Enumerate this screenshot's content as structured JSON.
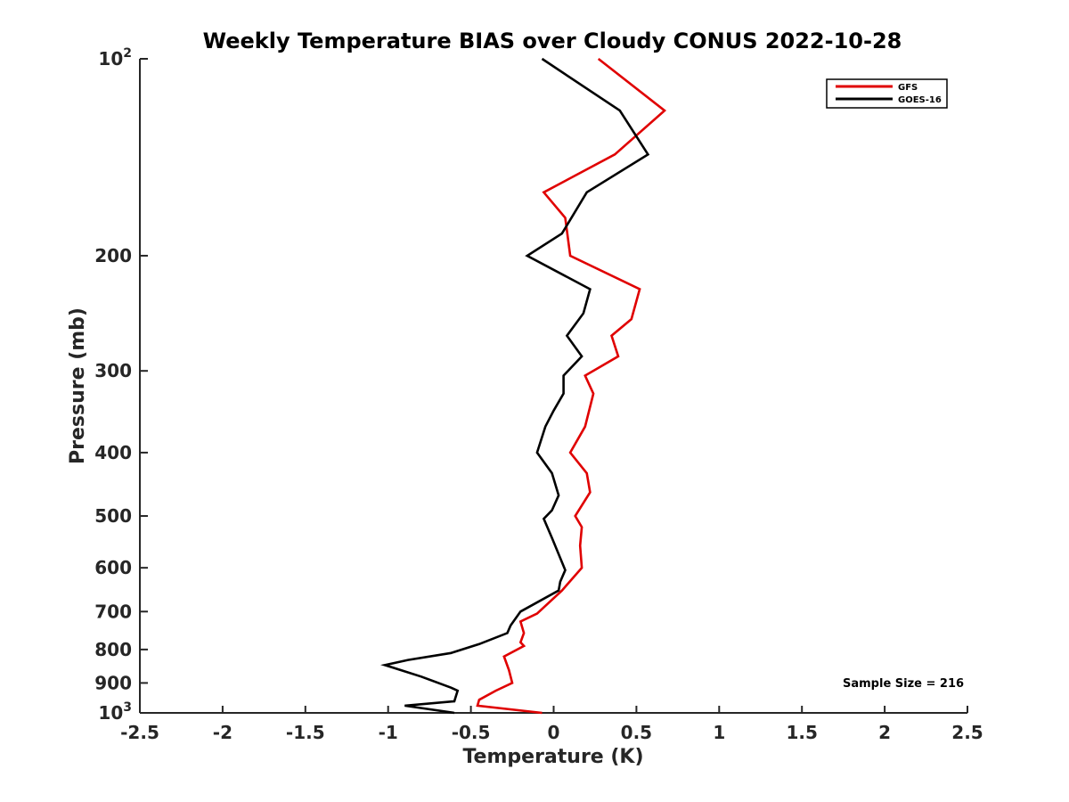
{
  "chart_data": {
    "type": "line",
    "title": "Weekly Temperature BIAS over Cloudy CONUS 2022-10-28",
    "xlabel": "Temperature (K)",
    "ylabel": "Pressure (mb)",
    "xlim": [
      -2.5,
      2.5
    ],
    "ylim": [
      1000,
      100
    ],
    "yscale": "log",
    "y_reversed": true,
    "grid": false,
    "legend_position": "top-right",
    "x_ticks": [
      "-2.5",
      "-2",
      "-1.5",
      "-1",
      "-0.5",
      "0",
      "0.5",
      "1",
      "1.5",
      "2",
      "2.5"
    ],
    "x_tick_values": [
      -2.5,
      -2,
      -1.5,
      -1,
      -0.5,
      0,
      0.5,
      1,
      1.5,
      2,
      2.5
    ],
    "y_ticks": [
      {
        "value": 100,
        "base": "10",
        "exp": "2"
      },
      {
        "value": 200,
        "label": "200"
      },
      {
        "value": 300,
        "label": "300"
      },
      {
        "value": 400,
        "label": "400"
      },
      {
        "value": 500,
        "label": "500"
      },
      {
        "value": 600,
        "label": "600"
      },
      {
        "value": 700,
        "label": "700"
      },
      {
        "value": 800,
        "label": "800"
      },
      {
        "value": 900,
        "label": "900"
      },
      {
        "value": 1000,
        "base": "10",
        "exp": "3"
      }
    ],
    "series": [
      {
        "name": "GFS",
        "color": "#e00000",
        "points": [
          [
            0.27,
            100
          ],
          [
            0.67,
            120
          ],
          [
            0.37,
            140
          ],
          [
            -0.06,
            160
          ],
          [
            0.07,
            175
          ],
          [
            0.1,
            200
          ],
          [
            0.52,
            225
          ],
          [
            0.47,
            250
          ],
          [
            0.35,
            265
          ],
          [
            0.39,
            285
          ],
          [
            0.19,
            305
          ],
          [
            0.24,
            325
          ],
          [
            0.19,
            365
          ],
          [
            0.1,
            400
          ],
          [
            0.2,
            430
          ],
          [
            0.22,
            460
          ],
          [
            0.13,
            500
          ],
          [
            0.17,
            520
          ],
          [
            0.16,
            555
          ],
          [
            0.17,
            600
          ],
          [
            0.05,
            650
          ],
          [
            -0.1,
            705
          ],
          [
            -0.2,
            725
          ],
          [
            -0.18,
            755
          ],
          [
            -0.2,
            780
          ],
          [
            -0.18,
            790
          ],
          [
            -0.3,
            820
          ],
          [
            -0.27,
            860
          ],
          [
            -0.25,
            900
          ],
          [
            -0.35,
            925
          ],
          [
            -0.45,
            955
          ],
          [
            -0.46,
            975
          ],
          [
            -0.07,
            1000
          ]
        ]
      },
      {
        "name": "GOES-16",
        "color": "#000000",
        "points": [
          [
            -0.07,
            100
          ],
          [
            0.4,
            120
          ],
          [
            0.57,
            140
          ],
          [
            0.2,
            160
          ],
          [
            0.05,
            185
          ],
          [
            -0.16,
            200
          ],
          [
            0.22,
            225
          ],
          [
            0.18,
            245
          ],
          [
            0.08,
            265
          ],
          [
            0.17,
            285
          ],
          [
            0.06,
            305
          ],
          [
            0.06,
            325
          ],
          [
            0.0,
            345
          ],
          [
            -0.05,
            365
          ],
          [
            -0.1,
            400
          ],
          [
            -0.01,
            430
          ],
          [
            0.03,
            465
          ],
          [
            -0.01,
            490
          ],
          [
            -0.06,
            505
          ],
          [
            -0.01,
            540
          ],
          [
            0.07,
            605
          ],
          [
            0.04,
            630
          ],
          [
            0.03,
            650
          ],
          [
            -0.2,
            700
          ],
          [
            -0.26,
            735
          ],
          [
            -0.28,
            755
          ],
          [
            -0.45,
            785
          ],
          [
            -0.62,
            810
          ],
          [
            -0.88,
            830
          ],
          [
            -1.02,
            845
          ],
          [
            -0.8,
            880
          ],
          [
            -0.62,
            915
          ],
          [
            -0.58,
            925
          ],
          [
            -0.6,
            960
          ],
          [
            -0.9,
            975
          ],
          [
            -0.6,
            1000
          ]
        ]
      }
    ],
    "annotations": [
      "Sample Size = 216"
    ]
  }
}
